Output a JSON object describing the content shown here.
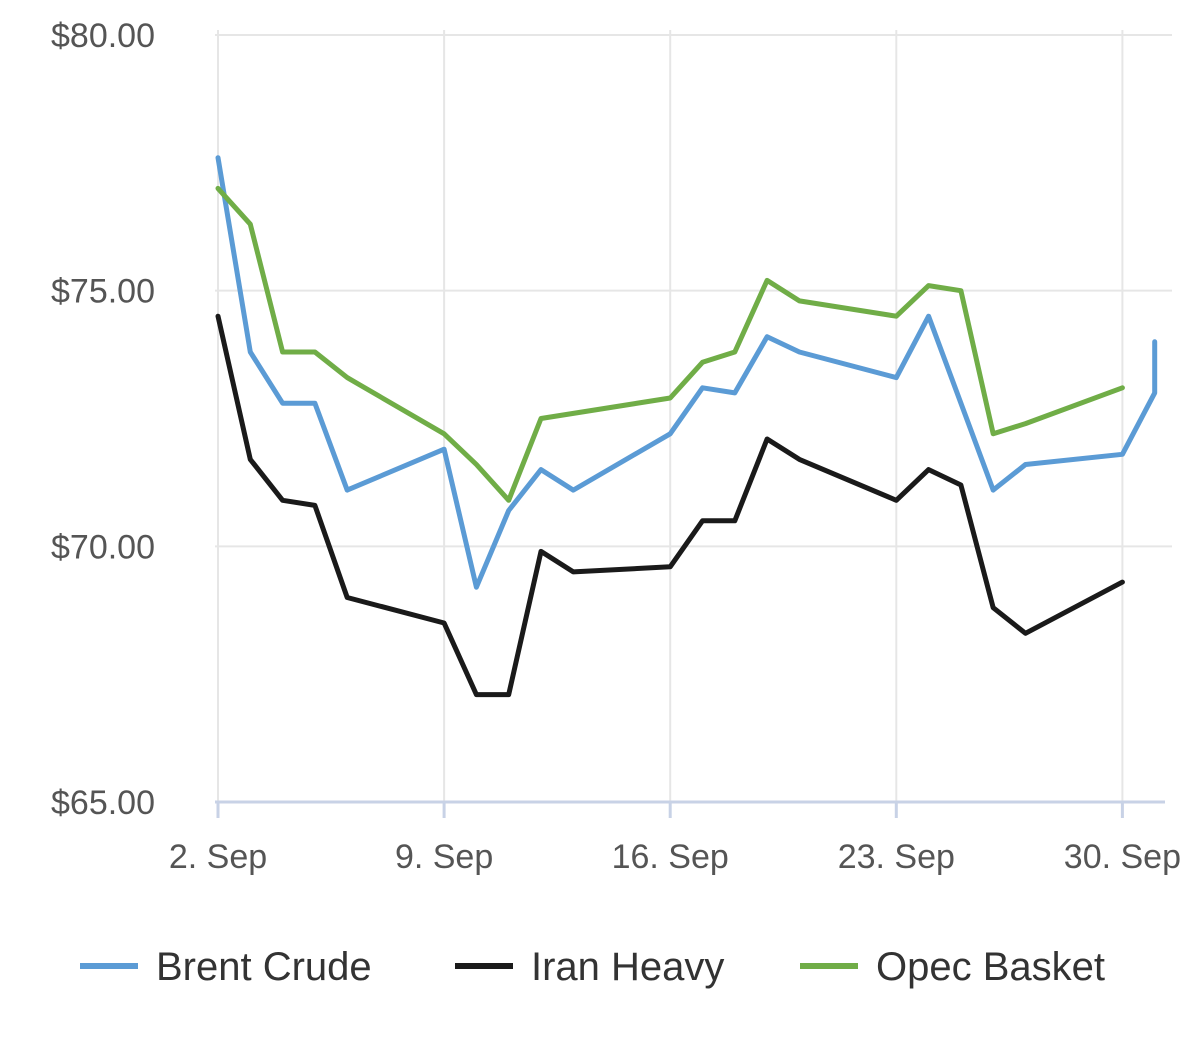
{
  "chart_data": {
    "type": "line",
    "title": "",
    "xlabel": "",
    "ylabel": "",
    "x_ticks": [
      "2. Sep",
      "9. Sep",
      "16. Sep",
      "23. Sep",
      "30. Sep"
    ],
    "y_ticks": [
      "$65.00",
      "$70.00",
      "$75.00",
      "$80.00"
    ],
    "ylim": [
      65,
      80
    ],
    "xlim": [
      "2019-09-02",
      "2019-10-01"
    ],
    "grid": true,
    "legend_position": "bottom",
    "series": [
      {
        "name": "Brent Crude",
        "color": "#5b9bd5",
        "points": [
          [
            "2019-09-02",
            77.6
          ],
          [
            "2019-09-03",
            73.8
          ],
          [
            "2019-09-04",
            72.8
          ],
          [
            "2019-09-05",
            72.8
          ],
          [
            "2019-09-06",
            71.1
          ],
          [
            "2019-09-09",
            71.9
          ],
          [
            "2019-09-10",
            69.2
          ],
          [
            "2019-09-11",
            70.7
          ],
          [
            "2019-09-12",
            71.5
          ],
          [
            "2019-09-13",
            71.1
          ],
          [
            "2019-09-16",
            72.2
          ],
          [
            "2019-09-17",
            73.1
          ],
          [
            "2019-09-18",
            73.0
          ],
          [
            "2019-09-19",
            74.1
          ],
          [
            "2019-09-20",
            73.8
          ],
          [
            "2019-09-23",
            73.3
          ],
          [
            "2019-09-24",
            74.5
          ],
          [
            "2019-09-26",
            71.1
          ],
          [
            "2019-09-27",
            71.6
          ],
          [
            "2019-09-30",
            71.8
          ],
          [
            "2019-10-01",
            73.0
          ],
          [
            "2019-10-01",
            74.0
          ]
        ]
      },
      {
        "name": "Iran Heavy",
        "color": "#1a1a1a",
        "points": [
          [
            "2019-09-02",
            74.5
          ],
          [
            "2019-09-03",
            71.7
          ],
          [
            "2019-09-04",
            70.9
          ],
          [
            "2019-09-05",
            70.8
          ],
          [
            "2019-09-06",
            69.0
          ],
          [
            "2019-09-09",
            68.5
          ],
          [
            "2019-09-10",
            67.1
          ],
          [
            "2019-09-11",
            67.1
          ],
          [
            "2019-09-12",
            69.9
          ],
          [
            "2019-09-13",
            69.5
          ],
          [
            "2019-09-16",
            69.6
          ],
          [
            "2019-09-17",
            70.5
          ],
          [
            "2019-09-18",
            70.5
          ],
          [
            "2019-09-19",
            72.1
          ],
          [
            "2019-09-20",
            71.7
          ],
          [
            "2019-09-23",
            70.9
          ],
          [
            "2019-09-24",
            71.5
          ],
          [
            "2019-09-25",
            71.2
          ],
          [
            "2019-09-26",
            68.8
          ],
          [
            "2019-09-27",
            68.3
          ],
          [
            "2019-09-30",
            69.3
          ]
        ]
      },
      {
        "name": "Opec Basket",
        "color": "#70ad47",
        "points": [
          [
            "2019-09-02",
            77.0
          ],
          [
            "2019-09-03",
            76.3
          ],
          [
            "2019-09-04",
            73.8
          ],
          [
            "2019-09-05",
            73.8
          ],
          [
            "2019-09-06",
            73.3
          ],
          [
            "2019-09-09",
            72.2
          ],
          [
            "2019-09-10",
            71.6
          ],
          [
            "2019-09-11",
            70.9
          ],
          [
            "2019-09-12",
            72.5
          ],
          [
            "2019-09-16",
            72.9
          ],
          [
            "2019-09-17",
            73.6
          ],
          [
            "2019-09-18",
            73.8
          ],
          [
            "2019-09-19",
            75.2
          ],
          [
            "2019-09-20",
            74.8
          ],
          [
            "2019-09-23",
            74.5
          ],
          [
            "2019-09-24",
            75.1
          ],
          [
            "2019-09-25",
            75.0
          ],
          [
            "2019-09-26",
            72.2
          ],
          [
            "2019-09-27",
            72.4
          ],
          [
            "2019-09-30",
            73.1
          ]
        ]
      }
    ]
  }
}
